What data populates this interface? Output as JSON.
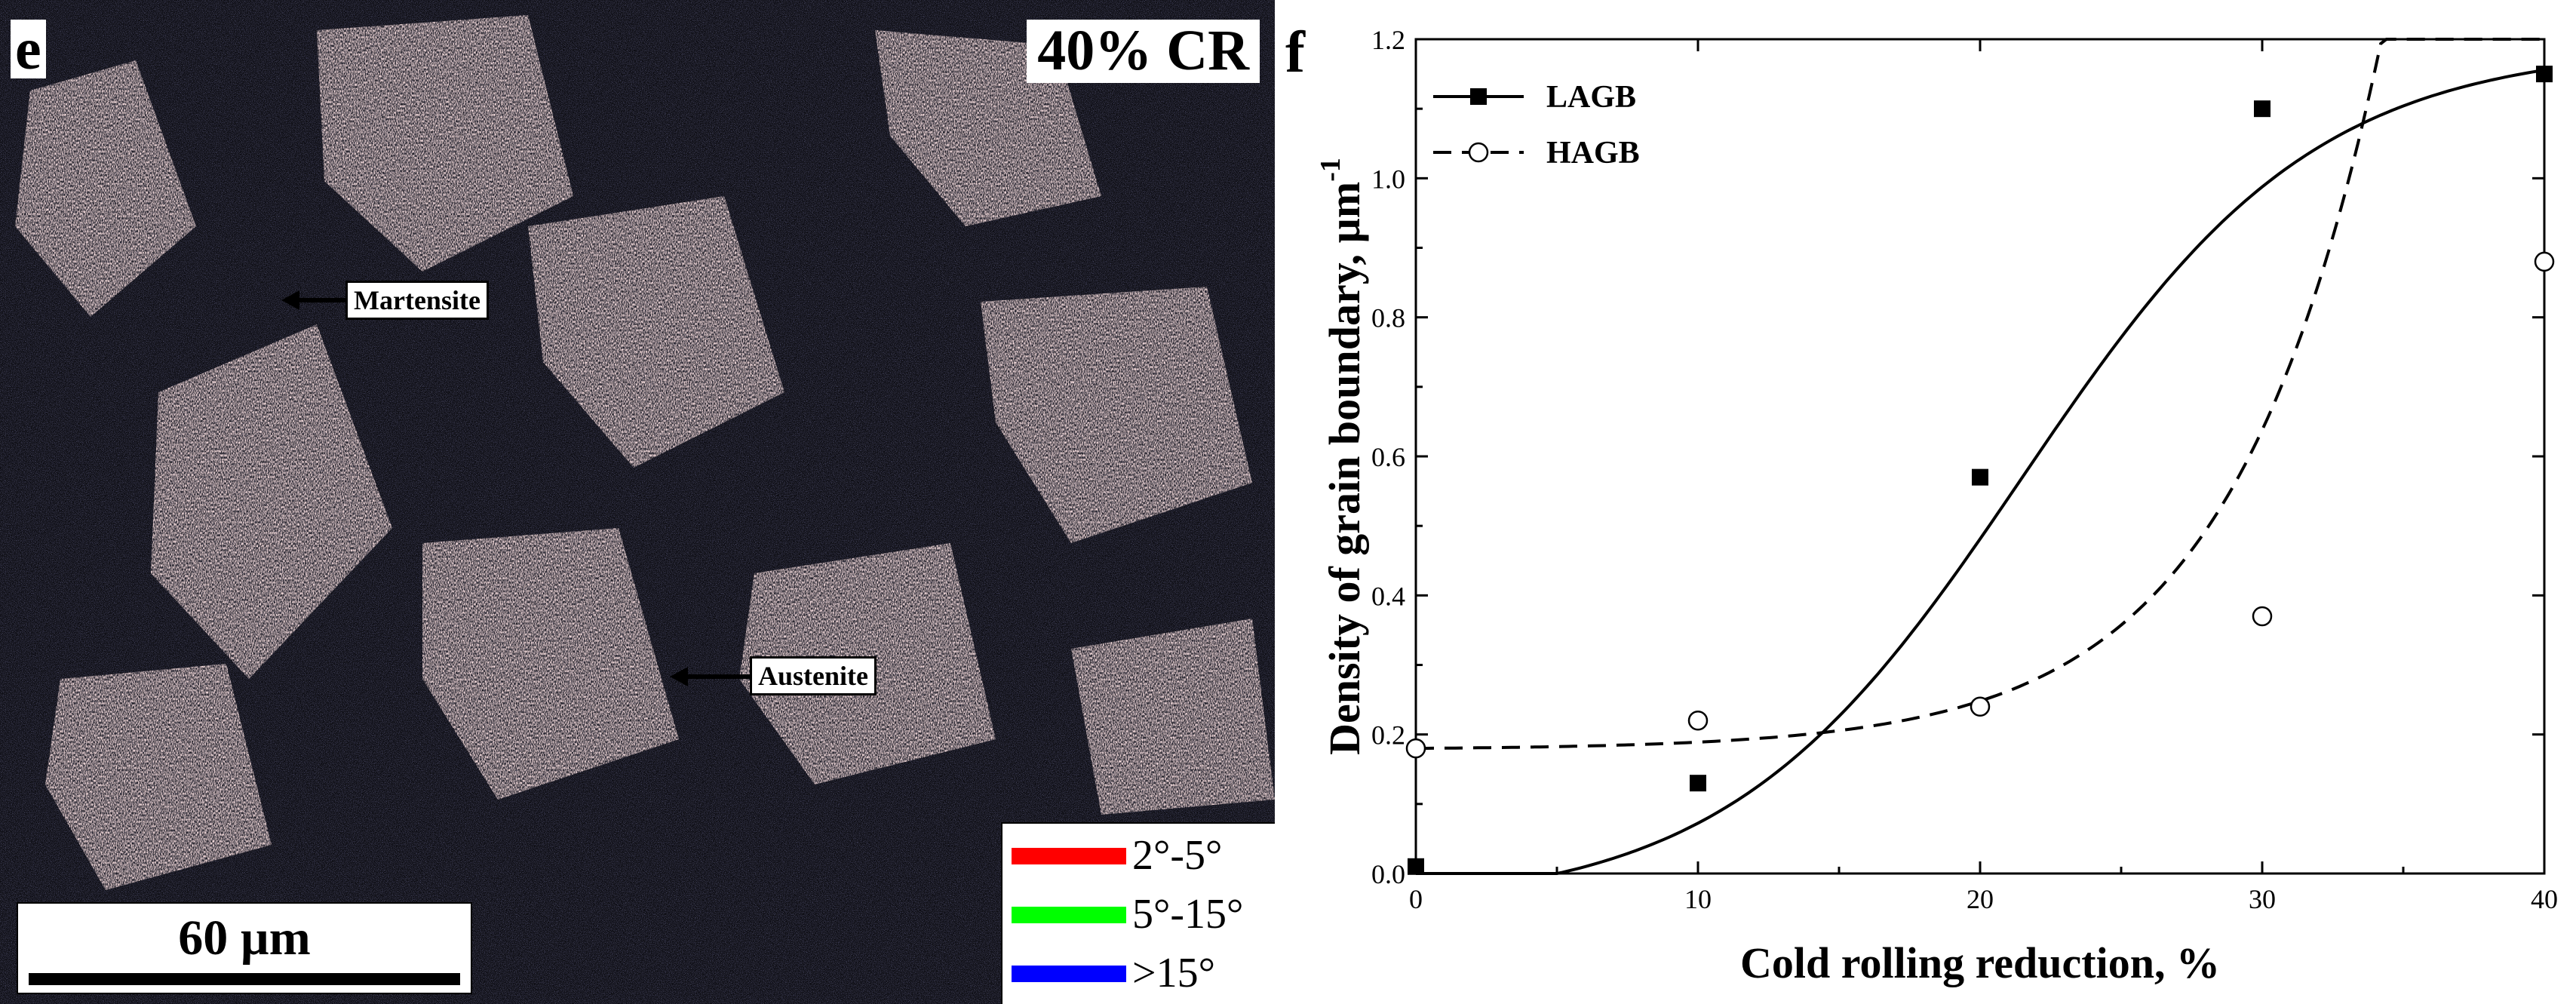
{
  "panel_e": {
    "letter": "e",
    "condition_label": "40% CR",
    "phase_labels": {
      "martensite": "Martensite",
      "austenite": "Austenite"
    },
    "scale_bar": "60 µm",
    "misorientation_legend": [
      {
        "label": "2°-5°",
        "color": "#ff0000"
      },
      {
        "label": "5°-15°",
        "color": "#00ff00"
      },
      {
        "label": ">15°",
        "color": "#0000ff"
      }
    ]
  },
  "panel_f": {
    "letter": "f"
  },
  "chart_data": {
    "type": "line",
    "xlabel": "Cold rolling reduction, %",
    "ylabel": "Density of grain boundary, µm",
    "ylabel_superscript": "-1",
    "xlim": [
      0,
      40
    ],
    "ylim": [
      0,
      1.2
    ],
    "xticks": [
      0,
      10,
      20,
      30,
      40
    ],
    "yticks": [
      0.0,
      0.2,
      0.4,
      0.6,
      0.8,
      1.0,
      1.2
    ],
    "ytick_labels": [
      "0.0",
      "0.2",
      "0.4",
      "0.6",
      "0.8",
      "1.0",
      "1.2"
    ],
    "legend_position": "top-left",
    "series": [
      {
        "name": "LAGB",
        "marker": "filled-square",
        "line": "solid",
        "x": [
          0,
          10,
          20,
          30,
          40
        ],
        "values": [
          0.01,
          0.13,
          0.57,
          1.1,
          1.15
        ],
        "fit": {
          "kind": "sigmoid",
          "A1": -0.05,
          "A2": 1.19,
          "x0": 21.5,
          "dx": 5.2
        }
      },
      {
        "name": "HAGB",
        "marker": "open-circle",
        "line": "dashed",
        "x": [
          0,
          10,
          20,
          30,
          40
        ],
        "values": [
          0.18,
          0.22,
          0.24,
          0.37,
          0.88
        ],
        "fit": {
          "kind": "exponential",
          "a": 0.18,
          "b": 0.0016,
          "c": 5.3
        }
      }
    ]
  }
}
